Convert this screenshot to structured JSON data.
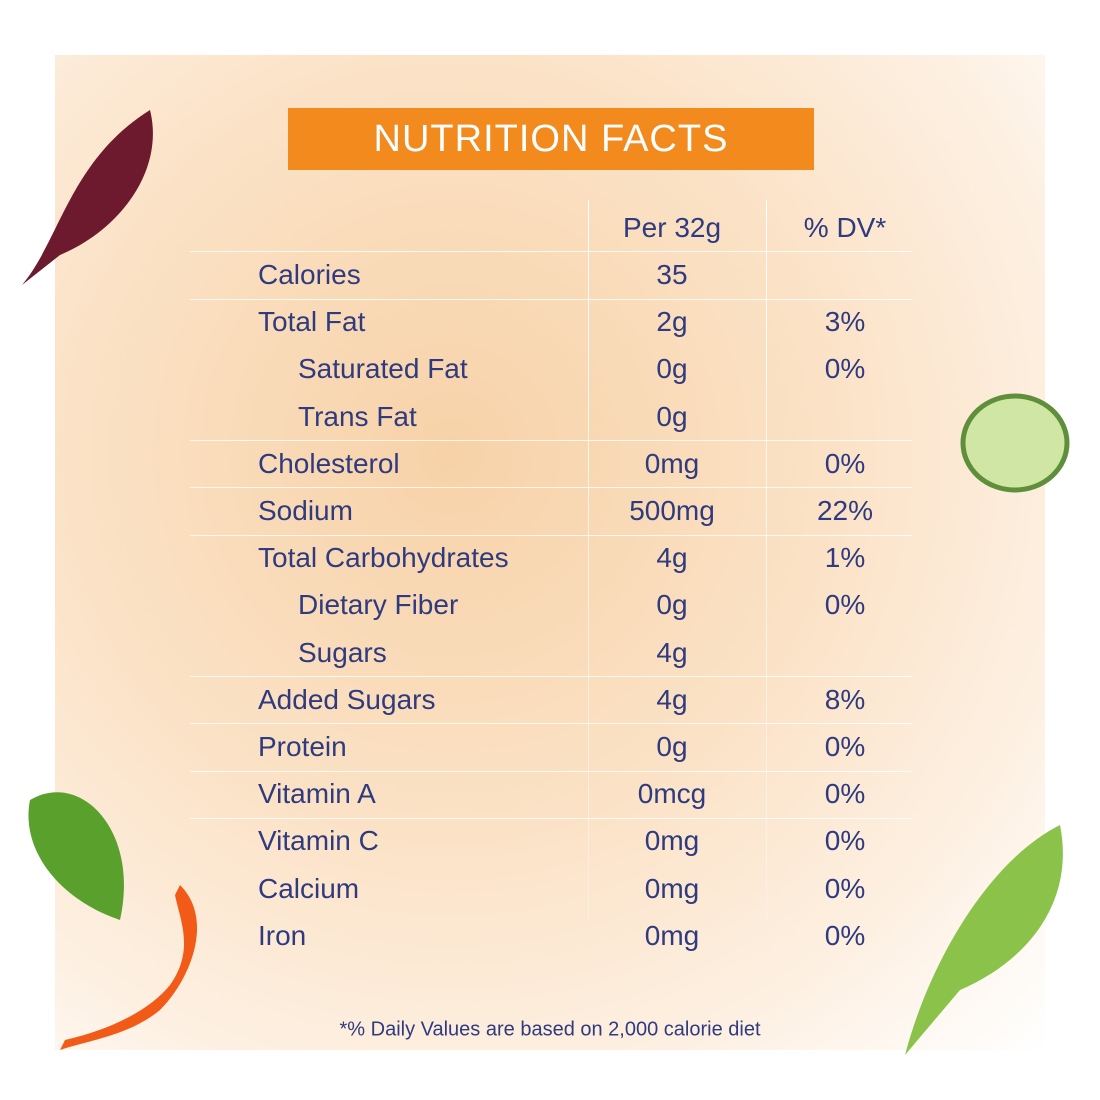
{
  "header": {
    "title": "NUTRITION FACTS"
  },
  "table": {
    "columns": [
      "Per 32g",
      "% DV*"
    ],
    "rows": [
      {
        "label": "Calories",
        "amount": "35"
      },
      {
        "label": "Total Fat",
        "amount": "2g",
        "dv": "3%"
      },
      {
        "label": "Saturated Fat",
        "amount": "0g",
        "dv": "0%",
        "indent": true
      },
      {
        "label": "Trans Fat",
        "amount": "0g",
        "indent": true
      },
      {
        "label": "Cholesterol",
        "amount": "0mg",
        "dv": "0%"
      },
      {
        "label": "Sodium",
        "amount": "500mg",
        "dv": "22%"
      },
      {
        "label": "Total Carbohydrates",
        "amount": "4g",
        "dv": "1%"
      },
      {
        "label": "Dietary Fiber",
        "amount": "0g",
        "dv": "0%",
        "indent": true
      },
      {
        "label": "Sugars",
        "amount": "4g",
        "indent": true
      },
      {
        "label": "Added Sugars",
        "amount": "4g",
        "dv": "8%"
      },
      {
        "label": "Protein",
        "amount": "0g",
        "dv": "0%"
      },
      {
        "label": "Vitamin A",
        "amount": "0mcg",
        "dv": "0%"
      },
      {
        "label": "Vitamin C",
        "amount": "0mg",
        "dv": "0%"
      },
      {
        "label": "Calcium",
        "amount": "0mg",
        "dv": "0%"
      },
      {
        "label": "Iron",
        "amount": "0mg",
        "dv": "0%"
      }
    ]
  },
  "footnote": "*% Daily Values are based on 2,000 calorie diet"
}
